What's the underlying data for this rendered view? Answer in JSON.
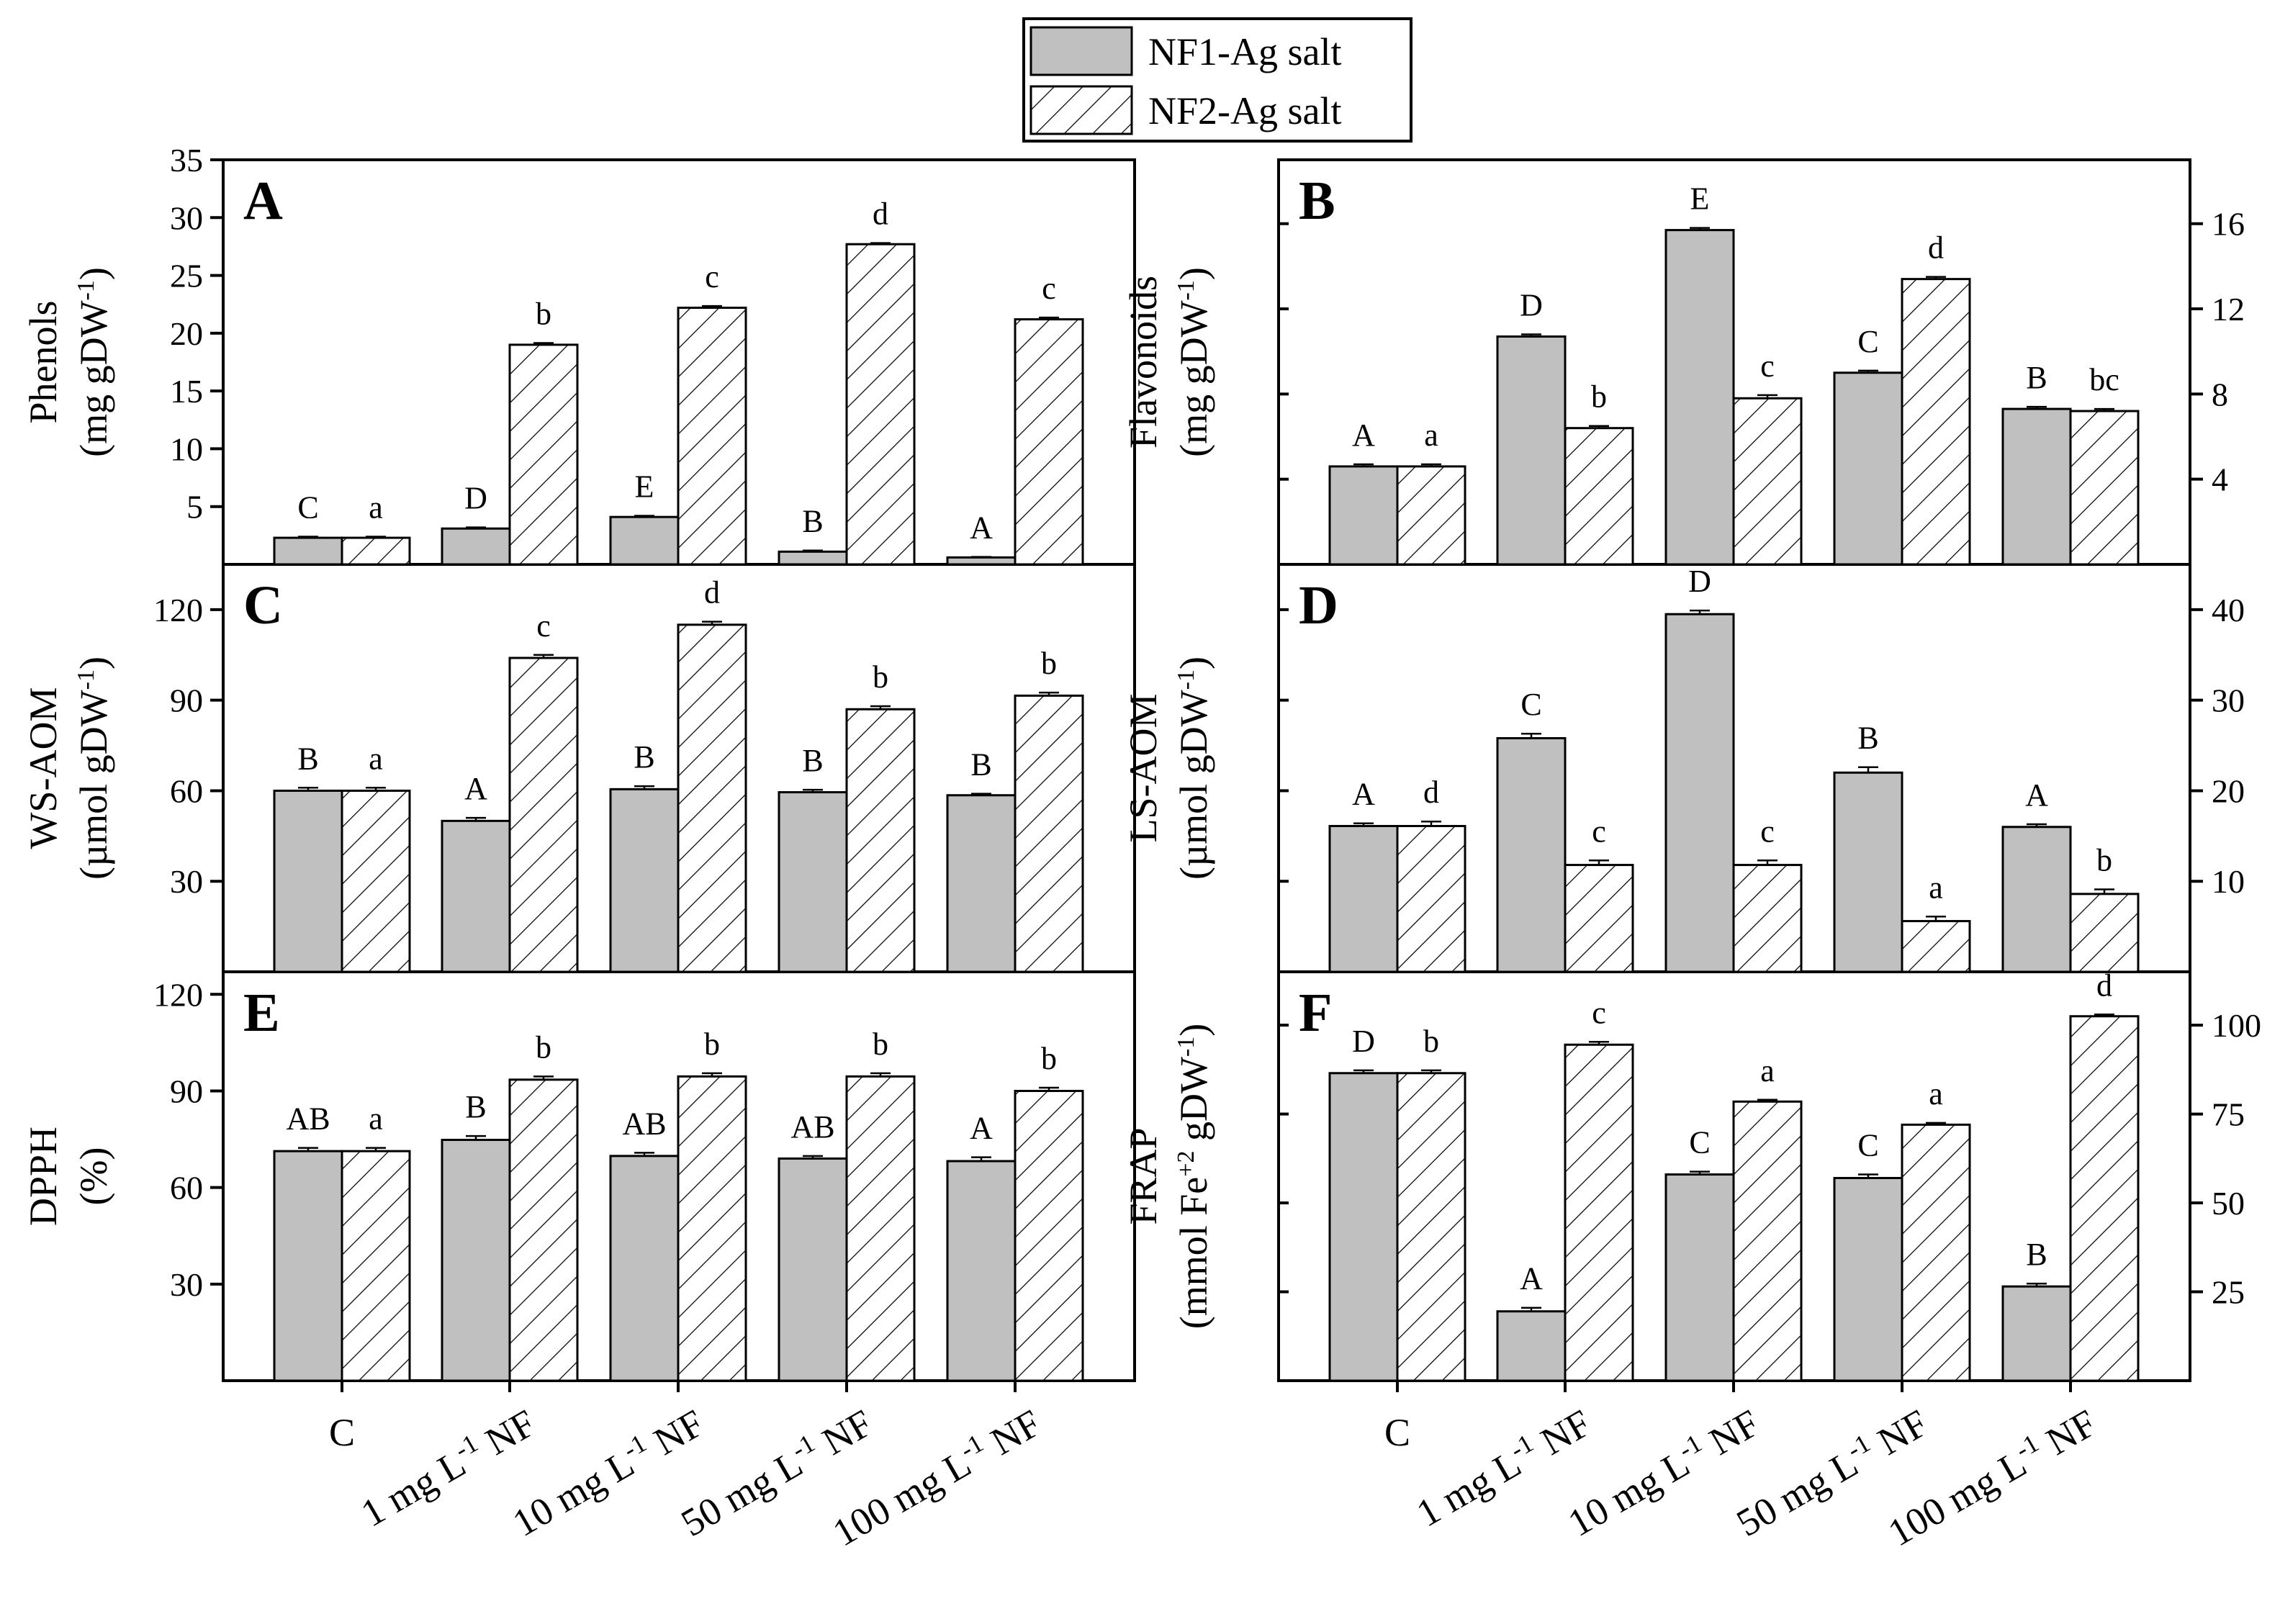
{
  "legend": {
    "nf1": "NF1-Ag salt",
    "nf2": "NF2-Ag salt"
  },
  "colors": {
    "nf1_fill": "#c0c0c0",
    "nf2_fill": "#ffffff",
    "line": "#000000"
  },
  "categories": [
    "C",
    "1 mg L-1 NF",
    "10 mg L-1 NF",
    "50 mg L-1 NF",
    "100 mg L-1 NF"
  ],
  "category_text": [
    {
      "pre": "C",
      "sup": "",
      "post": ""
    },
    {
      "pre": "1 mg L",
      "sup": "-1",
      "post": " NF"
    },
    {
      "pre": "10 mg L",
      "sup": "-1",
      "post": " NF"
    },
    {
      "pre": "50 mg L",
      "sup": "-1",
      "post": " NF"
    },
    {
      "pre": "100 mg L",
      "sup": "-1",
      "post": " NF"
    }
  ],
  "chart_data": [
    {
      "panel": "A",
      "type": "bar",
      "title": "",
      "ylabel_line1": "Phenols",
      "ylabel_line2_pre": "(mg gDW",
      "ylabel_line2_sup": "-1",
      "ylabel_line2_post": ")",
      "ylim": [
        0,
        35
      ],
      "yticks": [
        5,
        10,
        15,
        20,
        25,
        30,
        35
      ],
      "yaxis_side": "left",
      "categories": [
        "C",
        "1 mg L-1 NF",
        "10 mg L-1 NF",
        "50 mg L-1 NF",
        "100 mg L-1 NF"
      ],
      "series": [
        {
          "name": "NF1-Ag salt",
          "values": [
            2.3,
            3.1,
            4.1,
            1.1,
            0.6
          ],
          "errors": [
            0.1,
            0.1,
            0.1,
            0.1,
            0.05
          ],
          "letters": [
            "C",
            "D",
            "E",
            "B",
            "A"
          ]
        },
        {
          "name": "NF2-Ag salt",
          "values": [
            2.3,
            19.0,
            22.2,
            27.7,
            21.2
          ],
          "errors": [
            0.1,
            0.15,
            0.15,
            0.1,
            0.15
          ],
          "letters": [
            "a",
            "b",
            "c",
            "d",
            "c"
          ]
        }
      ]
    },
    {
      "panel": "B",
      "type": "bar",
      "title": "",
      "ylabel_line1": "Flavonoids",
      "ylabel_line2_pre": "(mg gDW",
      "ylabel_line2_sup": "-1",
      "ylabel_line2_post": ")",
      "ylim": [
        0,
        19
      ],
      "yticks": [
        4,
        8,
        12,
        16
      ],
      "yaxis_side": "right",
      "categories": [
        "C",
        "1 mg L-1 NF",
        "10 mg L-1 NF",
        "50 mg L-1 NF",
        "100 mg L-1 NF"
      ],
      "series": [
        {
          "name": "NF1-Ag salt",
          "values": [
            4.6,
            10.7,
            15.7,
            9.0,
            7.3
          ],
          "errors": [
            0.1,
            0.1,
            0.1,
            0.1,
            0.1
          ],
          "letters": [
            "A",
            "D",
            "E",
            "C",
            "B"
          ]
        },
        {
          "name": "NF2-Ag salt",
          "values": [
            4.6,
            6.4,
            7.8,
            13.4,
            7.2
          ],
          "errors": [
            0.1,
            0.1,
            0.15,
            0.1,
            0.1
          ],
          "letters": [
            "a",
            "b",
            "c",
            "d",
            "bc"
          ]
        }
      ]
    },
    {
      "panel": "C",
      "type": "bar",
      "title": "",
      "ylabel_line1": "WS-AOM",
      "ylabel_line2_pre": "(µmol gDW",
      "ylabel_line2_sup": "-1",
      "ylabel_line2_post": ")",
      "ylim": [
        0,
        135
      ],
      "yticks": [
        30,
        60,
        90,
        120
      ],
      "yaxis_side": "left",
      "categories": [
        "C",
        "1 mg L-1 NF",
        "10 mg L-1 NF",
        "50 mg L-1 NF",
        "100 mg L-1 NF"
      ],
      "series": [
        {
          "name": "NF1-Ag salt",
          "values": [
            60,
            50,
            60.5,
            59.5,
            58.5
          ],
          "errors": [
            1.0,
            1.0,
            1.0,
            0.8,
            0.5
          ],
          "letters": [
            "B",
            "A",
            "B",
            "B",
            "B"
          ]
        },
        {
          "name": "NF2-Ag salt",
          "values": [
            60,
            104,
            115,
            87,
            91.5
          ],
          "errors": [
            1.0,
            1.0,
            1.0,
            1.0,
            1.0
          ],
          "letters": [
            "a",
            "c",
            "d",
            "b",
            "b"
          ]
        }
      ]
    },
    {
      "panel": "D",
      "type": "bar",
      "title": "",
      "ylabel_line1": "LS-AOM",
      "ylabel_line2_pre": "(µmol gDW",
      "ylabel_line2_sup": "-1",
      "ylabel_line2_post": ")",
      "ylim": [
        0,
        45
      ],
      "yticks": [
        10,
        20,
        30,
        40
      ],
      "yaxis_side": "right",
      "categories": [
        "C",
        "1 mg L-1 NF",
        "10 mg L-1 NF",
        "50 mg L-1 NF",
        "100 mg L-1 NF"
      ],
      "series": [
        {
          "name": "NF1-Ag salt",
          "values": [
            16.1,
            25.8,
            39.5,
            22.0,
            16.0
          ],
          "errors": [
            0.3,
            0.5,
            0.4,
            0.6,
            0.3
          ],
          "letters": [
            "A",
            "C",
            "D",
            "B",
            "A"
          ]
        },
        {
          "name": "NF2-Ag salt",
          "values": [
            16.1,
            11.8,
            11.8,
            5.6,
            8.6
          ],
          "errors": [
            0.5,
            0.5,
            0.5,
            0.5,
            0.5
          ],
          "letters": [
            "d",
            "c",
            "c",
            "a",
            "b"
          ]
        }
      ]
    },
    {
      "panel": "E",
      "type": "bar",
      "title": "",
      "ylabel_line1": "DPPH",
      "ylabel_line2_pre": "(%)",
      "ylabel_line2_sup": "",
      "ylabel_line2_post": "",
      "ylim": [
        0,
        127
      ],
      "yticks": [
        30,
        60,
        90,
        120
      ],
      "yaxis_side": "left",
      "categories": [
        "C",
        "1 mg L-1 NF",
        "10 mg L-1 NF",
        "50 mg L-1 NF",
        "100 mg L-1 NF"
      ],
      "series": [
        {
          "name": "NF1-Ag salt",
          "values": [
            71.3,
            74.8,
            69.8,
            69.0,
            68.2
          ],
          "errors": [
            1.0,
            1.2,
            1.0,
            0.8,
            1.2
          ],
          "letters": [
            "AB",
            "B",
            "AB",
            "AB",
            "A"
          ]
        },
        {
          "name": "NF2-Ag salt",
          "values": [
            71.3,
            93.5,
            94.5,
            94.5,
            90.0
          ],
          "errors": [
            1.0,
            1.0,
            1.0,
            1.0,
            1.0
          ],
          "letters": [
            "a",
            "b",
            "b",
            "b",
            "b"
          ]
        }
      ]
    },
    {
      "panel": "F",
      "type": "bar",
      "title": "",
      "ylabel_line1": "FRAP",
      "ylabel_line2_pre": "(mmol Fe",
      "ylabel_line2_sup": "+2",
      "ylabel_line2_post": " gDW",
      "ylabel_line2_sup2": "-1",
      "ylabel_line2_post2": ")",
      "ylim": [
        0,
        115
      ],
      "yticks": [
        25,
        50,
        75,
        100
      ],
      "yaxis_side": "right",
      "categories": [
        "C",
        "1 mg L-1 NF",
        "10 mg L-1 NF",
        "50 mg L-1 NF",
        "100 mg L-1 NF"
      ],
      "series": [
        {
          "name": "NF1-Ag salt",
          "values": [
            86.5,
            19.5,
            58.0,
            57.0,
            26.5
          ],
          "errors": [
            0.8,
            1.0,
            0.8,
            1.0,
            0.8
          ],
          "letters": [
            "D",
            "A",
            "C",
            "C",
            "B"
          ]
        },
        {
          "name": "NF2-Ag salt",
          "values": [
            86.5,
            94.5,
            78.5,
            72.0,
            102.5
          ],
          "errors": [
            0.8,
            0.8,
            0.5,
            0.5,
            0.5
          ],
          "letters": [
            "b",
            "c",
            "a",
            "a",
            "d"
          ]
        }
      ]
    }
  ]
}
